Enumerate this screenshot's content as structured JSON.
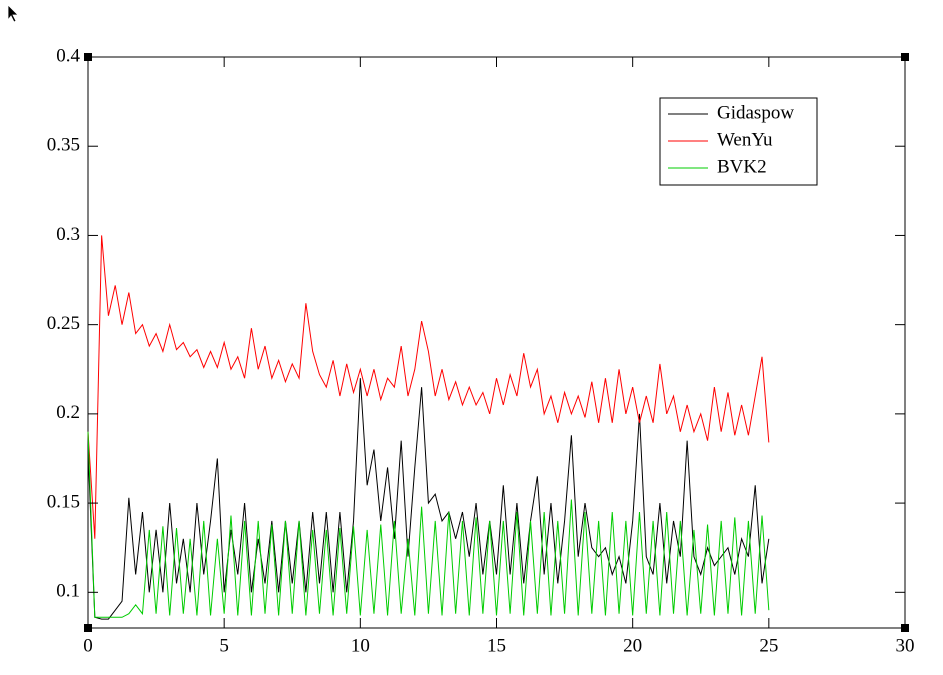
{
  "chart_data": {
    "type": "line",
    "x": [
      0,
      0.25,
      0.5,
      0.75,
      1,
      1.25,
      1.5,
      1.75,
      2,
      2.25,
      2.5,
      2.75,
      3,
      3.25,
      3.5,
      3.75,
      4,
      4.25,
      4.5,
      4.75,
      5,
      5.25,
      5.5,
      5.75,
      6,
      6.25,
      6.5,
      6.75,
      7,
      7.25,
      7.5,
      7.75,
      8,
      8.25,
      8.5,
      8.75,
      9,
      9.25,
      9.5,
      9.75,
      10,
      10.25,
      10.5,
      10.75,
      11,
      11.25,
      11.5,
      11.75,
      12,
      12.25,
      12.5,
      12.75,
      13,
      13.25,
      13.5,
      13.75,
      14,
      14.25,
      14.5,
      14.75,
      15,
      15.25,
      15.5,
      15.75,
      16,
      16.25,
      16.5,
      16.75,
      17,
      17.25,
      17.5,
      17.75,
      18,
      18.25,
      18.5,
      18.75,
      19,
      19.25,
      19.5,
      19.75,
      20,
      20.25,
      20.5,
      20.75,
      21,
      21.25,
      21.5,
      21.75,
      22,
      22.25,
      22.5,
      22.75,
      23,
      23.25,
      23.5,
      23.75,
      24,
      24.25,
      24.5,
      24.75,
      25
    ],
    "series": [
      {
        "name": "Gidaspow",
        "color": "#000000",
        "values": [
          0.18,
          0.086,
          0.085,
          0.085,
          0.09,
          0.095,
          0.153,
          0.11,
          0.145,
          0.1,
          0.135,
          0.1,
          0.15,
          0.105,
          0.13,
          0.1,
          0.15,
          0.11,
          0.14,
          0.175,
          0.1,
          0.135,
          0.11,
          0.15,
          0.1,
          0.13,
          0.105,
          0.14,
          0.1,
          0.14,
          0.105,
          0.14,
          0.1,
          0.145,
          0.105,
          0.145,
          0.1,
          0.145,
          0.1,
          0.14,
          0.22,
          0.16,
          0.18,
          0.14,
          0.17,
          0.13,
          0.185,
          0.12,
          0.17,
          0.215,
          0.15,
          0.155,
          0.14,
          0.145,
          0.13,
          0.145,
          0.12,
          0.15,
          0.11,
          0.14,
          0.11,
          0.16,
          0.11,
          0.15,
          0.105,
          0.14,
          0.165,
          0.11,
          0.15,
          0.105,
          0.14,
          0.188,
          0.12,
          0.15,
          0.125,
          0.12,
          0.125,
          0.11,
          0.12,
          0.105,
          0.14,
          0.2,
          0.12,
          0.11,
          0.15,
          0.105,
          0.14,
          0.12,
          0.185,
          0.12,
          0.11,
          0.125,
          0.115,
          0.12,
          0.125,
          0.11,
          0.13,
          0.12,
          0.16,
          0.105,
          0.13
        ]
      },
      {
        "name": "WenYu",
        "color": "#ff0000",
        "values": [
          0.19,
          0.13,
          0.3,
          0.255,
          0.272,
          0.25,
          0.268,
          0.245,
          0.25,
          0.238,
          0.245,
          0.235,
          0.25,
          0.236,
          0.24,
          0.232,
          0.236,
          0.226,
          0.235,
          0.226,
          0.24,
          0.225,
          0.232,
          0.22,
          0.248,
          0.225,
          0.238,
          0.22,
          0.23,
          0.218,
          0.228,
          0.22,
          0.262,
          0.235,
          0.222,
          0.215,
          0.23,
          0.21,
          0.228,
          0.212,
          0.225,
          0.21,
          0.225,
          0.208,
          0.22,
          0.215,
          0.238,
          0.21,
          0.225,
          0.252,
          0.235,
          0.21,
          0.225,
          0.208,
          0.218,
          0.205,
          0.215,
          0.205,
          0.212,
          0.2,
          0.22,
          0.205,
          0.222,
          0.21,
          0.234,
          0.215,
          0.225,
          0.2,
          0.21,
          0.195,
          0.212,
          0.2,
          0.21,
          0.198,
          0.218,
          0.195,
          0.22,
          0.195,
          0.225,
          0.2,
          0.215,
          0.195,
          0.21,
          0.195,
          0.228,
          0.2,
          0.21,
          0.19,
          0.205,
          0.19,
          0.2,
          0.185,
          0.215,
          0.19,
          0.212,
          0.188,
          0.205,
          0.188,
          0.21,
          0.232,
          0.184
        ]
      },
      {
        "name": "BVK2",
        "color": "#00cc00",
        "values": [
          0.19,
          0.086,
          0.086,
          0.086,
          0.086,
          0.086,
          0.088,
          0.093,
          0.088,
          0.135,
          0.088,
          0.137,
          0.087,
          0.136,
          0.088,
          0.13,
          0.087,
          0.14,
          0.087,
          0.13,
          0.088,
          0.143,
          0.087,
          0.14,
          0.087,
          0.14,
          0.088,
          0.138,
          0.087,
          0.14,
          0.088,
          0.14,
          0.087,
          0.135,
          0.088,
          0.135,
          0.087,
          0.136,
          0.088,
          0.137,
          0.087,
          0.135,
          0.088,
          0.138,
          0.087,
          0.14,
          0.088,
          0.13,
          0.087,
          0.148,
          0.088,
          0.14,
          0.087,
          0.145,
          0.088,
          0.14,
          0.087,
          0.142,
          0.088,
          0.14,
          0.087,
          0.14,
          0.088,
          0.145,
          0.087,
          0.14,
          0.088,
          0.145,
          0.087,
          0.14,
          0.088,
          0.152,
          0.087,
          0.145,
          0.088,
          0.14,
          0.087,
          0.145,
          0.088,
          0.14,
          0.087,
          0.145,
          0.088,
          0.14,
          0.087,
          0.145,
          0.088,
          0.14,
          0.087,
          0.135,
          0.088,
          0.138,
          0.087,
          0.14,
          0.088,
          0.142,
          0.087,
          0.14,
          0.088,
          0.143,
          0.09
        ]
      }
    ],
    "xlim": [
      0,
      30
    ],
    "xticks": [
      0,
      5,
      10,
      15,
      20,
      25,
      30
    ],
    "ylim": [
      0.08,
      0.4
    ],
    "yticks": [
      0.1,
      0.15,
      0.2,
      0.25,
      0.3,
      0.35,
      0.4
    ]
  }
}
